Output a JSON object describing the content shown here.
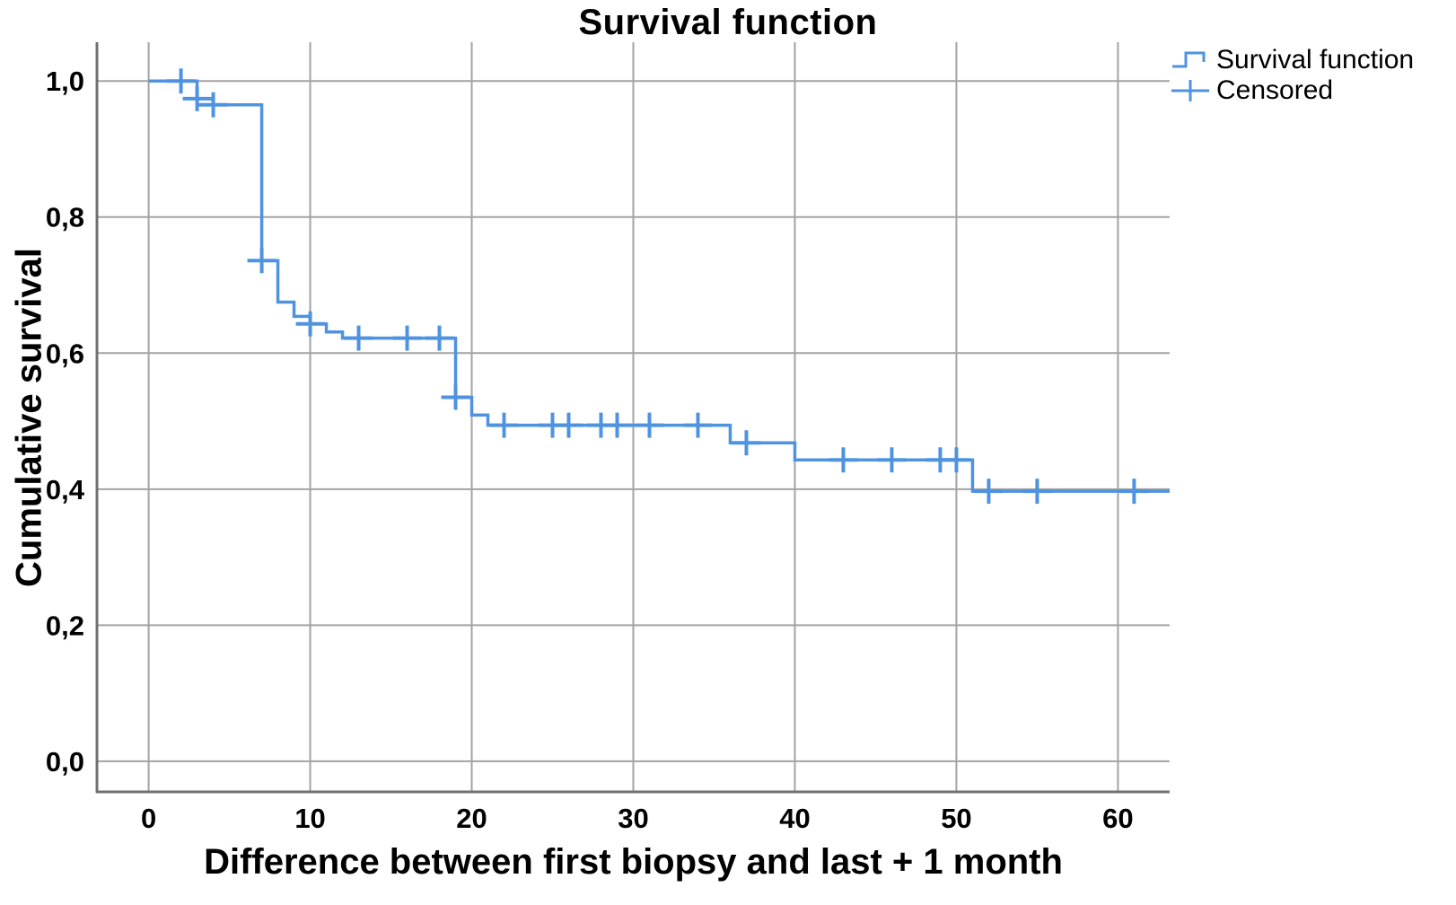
{
  "chart_data": {
    "type": "line",
    "subtype": "kaplan-meier-step-function",
    "title": "Survival function",
    "xlabel": "Difference between first biopsy and last + 1 month",
    "ylabel": "Cumulative survival",
    "legend": [
      {
        "label": "Survival function",
        "icon": "step-line-icon"
      },
      {
        "label": "Censored",
        "icon": "plus-marker-icon"
      }
    ],
    "grid": true,
    "legend_position": "top-right",
    "decimal_separator": ",",
    "xlim": [
      -3.2,
      63.2
    ],
    "ylim": [
      -0.045,
      1.057
    ],
    "x_ticks": [
      {
        "value": 0,
        "label": "0"
      },
      {
        "value": 10,
        "label": "10"
      },
      {
        "value": 20,
        "label": "20"
      },
      {
        "value": 30,
        "label": "30"
      },
      {
        "value": 40,
        "label": "40"
      },
      {
        "value": 50,
        "label": "50"
      },
      {
        "value": 60,
        "label": "60"
      }
    ],
    "y_ticks": [
      {
        "value": 0.0,
        "label": "0,0"
      },
      {
        "value": 0.2,
        "label": "0,2"
      },
      {
        "value": 0.4,
        "label": "0,4"
      },
      {
        "value": 0.6,
        "label": "0,6"
      },
      {
        "value": 0.8,
        "label": "0,8"
      },
      {
        "value": 1.0,
        "label": "1,0"
      }
    ],
    "survival_steps": [
      {
        "t": 0,
        "s": 1.0
      },
      {
        "t": 3,
        "s": 0.974
      },
      {
        "t": 4,
        "s": 0.965
      },
      {
        "t": 7,
        "s": 0.736
      },
      {
        "t": 8,
        "s": 0.675
      },
      {
        "t": 9,
        "s": 0.654
      },
      {
        "t": 10,
        "s": 0.643
      },
      {
        "t": 11,
        "s": 0.631
      },
      {
        "t": 12,
        "s": 0.622
      },
      {
        "t": 19,
        "s": 0.535
      },
      {
        "t": 20,
        "s": 0.509
      },
      {
        "t": 21,
        "s": 0.494
      },
      {
        "t": 36,
        "s": 0.468
      },
      {
        "t": 40,
        "s": 0.443
      },
      {
        "t": 51,
        "s": 0.397
      }
    ],
    "curve_end_t": 63.2,
    "censored": [
      {
        "t": 2,
        "s": 1.0
      },
      {
        "t": 3,
        "s": 0.974
      },
      {
        "t": 4,
        "s": 0.965
      },
      {
        "t": 7,
        "s": 0.736
      },
      {
        "t": 10,
        "s": 0.643
      },
      {
        "t": 13,
        "s": 0.622
      },
      {
        "t": 16,
        "s": 0.622
      },
      {
        "t": 18,
        "s": 0.622
      },
      {
        "t": 19,
        "s": 0.535
      },
      {
        "t": 22,
        "s": 0.494
      },
      {
        "t": 25,
        "s": 0.494
      },
      {
        "t": 26,
        "s": 0.494
      },
      {
        "t": 28,
        "s": 0.494
      },
      {
        "t": 29,
        "s": 0.494
      },
      {
        "t": 31,
        "s": 0.494
      },
      {
        "t": 34,
        "s": 0.494
      },
      {
        "t": 37,
        "s": 0.468
      },
      {
        "t": 43,
        "s": 0.443
      },
      {
        "t": 46,
        "s": 0.443
      },
      {
        "t": 49,
        "s": 0.443
      },
      {
        "t": 50,
        "s": 0.443
      },
      {
        "t": 52,
        "s": 0.397
      },
      {
        "t": 55,
        "s": 0.397
      },
      {
        "t": 61,
        "s": 0.397
      }
    ],
    "colors": {
      "curve": "#4f93e0",
      "grid": "#a3a3a3",
      "frame": "#707070",
      "text": "#000000"
    }
  }
}
